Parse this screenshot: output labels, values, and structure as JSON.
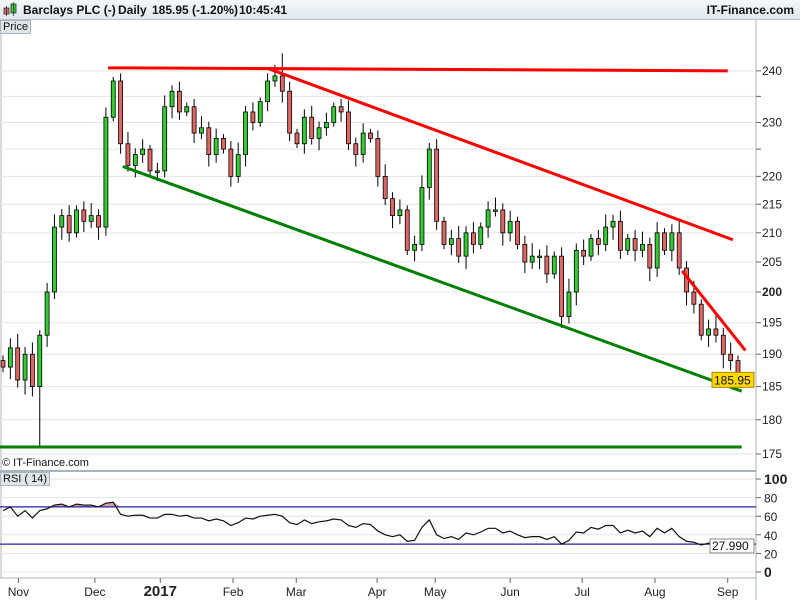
{
  "header": {
    "symbol": "Barclays PLC (-)",
    "interval": "Daily",
    "quote": "185.95 (-1.20%)",
    "time": "10:45:41",
    "brand": "IT-Finance.com"
  },
  "panels": {
    "price_label": "Price",
    "rsi_label": "RSI ( 14)",
    "copyright": "© IT-Finance.com"
  },
  "colors": {
    "up": "#33cc33",
    "down": "#e06666",
    "resistance": "#ff0000",
    "support": "#008000",
    "rsi_levels": "#2222aa",
    "last_price_bg": "#ffd700",
    "overbought_fill": "#d9a0a0"
  },
  "chart_data": {
    "type": "candlestick",
    "y_scale": "log",
    "ylim": [
      174,
      246
    ],
    "y_ticks": [
      175,
      180,
      185,
      190,
      195,
      200,
      205,
      210,
      215,
      220,
      230,
      240
    ],
    "y_tick_labels": [
      "175",
      "180",
      "185",
      "190",
      "195",
      "200",
      "205",
      "210",
      "215",
      "220",
      "230",
      "240"
    ],
    "last_price": "185.95",
    "x_ticks": [
      {
        "label": "Nov",
        "bar": 2.1
      },
      {
        "label": "Dec",
        "bar": 12.5
      },
      {
        "label": "2017",
        "bar": 21.4,
        "bold": true
      },
      {
        "label": "Feb",
        "bar": 31.3
      },
      {
        "label": "Mar",
        "bar": 39.9
      },
      {
        "label": "Apr",
        "bar": 50.9
      },
      {
        "label": "May",
        "bar": 58.8
      },
      {
        "label": "Jun",
        "bar": 69
      },
      {
        "label": "Jul",
        "bar": 78.8
      },
      {
        "label": "Aug",
        "bar": 88.7
      },
      {
        "label": "Sep",
        "bar": 98.6
      }
    ],
    "closes": [
      188,
      191,
      186,
      190,
      185,
      193,
      200,
      211,
      213,
      210,
      214,
      212,
      213,
      211,
      231,
      238,
      226,
      222,
      224,
      225,
      221,
      221,
      233,
      236,
      232,
      233,
      228,
      229,
      224,
      227,
      225,
      220,
      224,
      232,
      230,
      234,
      238,
      239,
      236,
      228,
      226,
      231,
      227,
      229,
      230,
      233,
      232,
      226,
      224,
      228,
      227,
      220,
      216,
      213,
      214,
      207,
      208,
      218,
      225,
      212,
      208,
      209,
      206,
      210,
      208,
      211,
      214,
      214,
      210,
      212,
      208,
      205,
      206,
      206,
      203,
      206,
      196,
      200,
      207,
      206,
      209,
      208,
      211,
      212,
      207,
      209,
      207,
      208,
      204,
      210,
      207,
      210,
      204,
      200,
      198,
      193,
      194,
      193,
      190,
      189,
      185.95
    ],
    "first_open": 189,
    "spike_low": {
      "bar": 5,
      "price": 176
    },
    "spike_high": {
      "bar": 38,
      "price": 243.5
    },
    "trendlines": [
      {
        "kind": "resistance",
        "from": {
          "bar": 14.3,
          "price": 240.6
        },
        "to": {
          "bar": 98.6,
          "price": 240.0
        }
      },
      {
        "kind": "resistance",
        "from": {
          "bar": 36,
          "price": 240.5
        },
        "to": {
          "bar": 99.3,
          "price": 208.8
        }
      },
      {
        "kind": "resistance",
        "from": {
          "bar": 92.4,
          "price": 203.5
        },
        "to": {
          "bar": 101,
          "price": 190.6
        }
      },
      {
        "kind": "support",
        "from": {
          "bar": 16.3,
          "price": 221.8
        },
        "to": {
          "bar": 100.5,
          "price": 184.3
        }
      },
      {
        "kind": "support",
        "from": {
          "bar": -0.4,
          "price": 176.0
        },
        "to": {
          "bar": 100.5,
          "price": 176.0
        }
      }
    ],
    "rsi": {
      "period": 14,
      "ylim": [
        0,
        100
      ],
      "levels": [
        30,
        70
      ],
      "y_ticks": [
        "100",
        "80",
        "60",
        "40",
        "20",
        "0"
      ],
      "last_value": "27.990",
      "values": [
        66,
        70,
        60,
        66,
        58,
        66,
        68,
        72,
        73,
        70,
        73,
        72,
        72,
        70,
        74,
        75,
        62,
        60,
        61,
        61,
        58,
        58,
        62,
        62,
        60,
        61,
        58,
        58,
        55,
        57,
        55,
        50,
        53,
        58,
        57,
        60,
        61,
        62,
        60,
        53,
        51,
        56,
        52,
        54,
        55,
        57,
        56,
        50,
        48,
        52,
        51,
        44,
        40,
        38,
        40,
        33,
        34,
        48,
        56,
        40,
        36,
        38,
        35,
        42,
        40,
        43,
        47,
        47,
        42,
        44,
        40,
        37,
        38,
        38,
        35,
        38,
        30,
        34,
        43,
        42,
        48,
        46,
        50,
        50,
        42,
        45,
        42,
        44,
        38,
        47,
        42,
        47,
        38,
        33,
        32,
        29,
        31,
        30,
        29,
        30,
        27.99
      ]
    }
  }
}
